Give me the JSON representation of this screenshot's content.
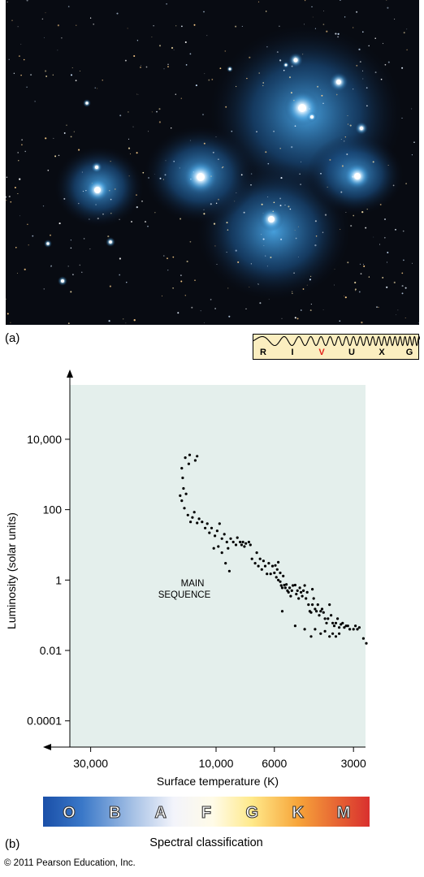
{
  "panel_a": {
    "label": "(a)",
    "band_labels": [
      "R",
      "I",
      "V",
      "U",
      "X",
      "G"
    ],
    "band_highlight": "V",
    "band_highlight_color": "#e32119"
  },
  "panel_b": {
    "label": "(b)"
  },
  "chart_data": {
    "type": "scatter",
    "xlabel": "Surface temperature (K)",
    "ylabel": "Luminosity (solar units)",
    "x_scale": "log (reversed)",
    "y_scale": "log",
    "x_ticks": [
      30000,
      10000,
      6000,
      3000
    ],
    "x_tick_labels": [
      "30,000",
      "10,000",
      "6000",
      "3000"
    ],
    "y_ticks": [
      0.0001,
      0.01,
      1,
      100,
      10000
    ],
    "y_tick_labels": [
      "0.0001",
      "0.01",
      "1",
      "100",
      "10,000"
    ],
    "xlim": [
      36000,
      2700
    ],
    "ylim": [
      1.8e-05,
      350000
    ],
    "annotation": [
      "MAIN",
      "SEQUENCE"
    ],
    "background_color": "#e4efec",
    "points": [
      [
        13500,
        1500
      ],
      [
        13400,
        800
      ],
      [
        13300,
        400
      ],
      [
        13100,
        3000
      ],
      [
        12700,
        2000
      ],
      [
        12600,
        3600
      ],
      [
        12000,
        2500
      ],
      [
        11800,
        3300
      ],
      [
        13700,
        250
      ],
      [
        13500,
        180
      ],
      [
        13200,
        110
      ],
      [
        13000,
        280
      ],
      [
        12800,
        70
      ],
      [
        12500,
        45
      ],
      [
        12300,
        60
      ],
      [
        12100,
        85
      ],
      [
        11800,
        42
      ],
      [
        11600,
        55
      ],
      [
        11300,
        45
      ],
      [
        11000,
        30
      ],
      [
        10800,
        40
      ],
      [
        10600,
        22
      ],
      [
        10400,
        30
      ],
      [
        10100,
        18
      ],
      [
        9900,
        25
      ],
      [
        9700,
        40
      ],
      [
        9500,
        15
      ],
      [
        9300,
        20
      ],
      [
        9100,
        12
      ],
      [
        9000,
        8
      ],
      [
        8800,
        15
      ],
      [
        8600,
        12
      ],
      [
        8400,
        10
      ],
      [
        8300,
        16
      ],
      [
        8100,
        12
      ],
      [
        8000,
        10
      ],
      [
        7900,
        12
      ],
      [
        7800,
        9
      ],
      [
        7700,
        11
      ],
      [
        7500,
        12
      ],
      [
        7400,
        10
      ],
      [
        10200,
        8
      ],
      [
        9800,
        9
      ],
      [
        9500,
        6
      ],
      [
        9200,
        3
      ],
      [
        8900,
        1.8
      ],
      [
        7300,
        4
      ],
      [
        7100,
        3
      ],
      [
        7000,
        6
      ],
      [
        6900,
        2.5
      ],
      [
        6800,
        4
      ],
      [
        6700,
        2.0
      ],
      [
        6600,
        3.5
      ],
      [
        6500,
        2.5
      ],
      [
        6400,
        1.5
      ],
      [
        6300,
        3.0
      ],
      [
        6200,
        1.5
      ],
      [
        6100,
        2.5
      ],
      [
        6000,
        1.6
      ],
      [
        5950,
        2.6
      ],
      [
        5900,
        1.2
      ],
      [
        5850,
        2.0
      ],
      [
        5800,
        3.2
      ],
      [
        5800,
        1.0
      ],
      [
        5700,
        0.9
      ],
      [
        5700,
        1.6
      ],
      [
        5650,
        0.7
      ],
      [
        5600,
        0.6
      ],
      [
        5550,
        1.3
      ],
      [
        5500,
        0.72
      ],
      [
        5450,
        0.6
      ],
      [
        5400,
        0.75
      ],
      [
        5350,
        0.5
      ],
      [
        5300,
        0.45
      ],
      [
        5250,
        0.6
      ],
      [
        5200,
        0.35
      ],
      [
        5150,
        0.5
      ],
      [
        5100,
        0.7
      ],
      [
        5000,
        0.72
      ],
      [
        4950,
        0.4
      ],
      [
        4900,
        0.5
      ],
      [
        4850,
        0.3
      ],
      [
        4800,
        0.6
      ],
      [
        4750,
        0.45
      ],
      [
        4700,
        0.35
      ],
      [
        4650,
        0.5
      ],
      [
        4600,
        0.7
      ],
      [
        4550,
        0.3
      ],
      [
        4500,
        0.45
      ],
      [
        4450,
        0.2
      ],
      [
        4400,
        0.13
      ],
      [
        4350,
        0.12
      ],
      [
        4300,
        0.2
      ],
      [
        4300,
        0.55
      ],
      [
        4250,
        0.3
      ],
      [
        4200,
        0.15
      ],
      [
        4150,
        0.13
      ],
      [
        4100,
        0.2
      ],
      [
        4050,
        0.1
      ],
      [
        4000,
        0.13
      ],
      [
        3950,
        0.15
      ],
      [
        3900,
        0.12
      ],
      [
        3850,
        0.08
      ],
      [
        3800,
        0.06
      ],
      [
        3750,
        0.08
      ],
      [
        3700,
        0.2
      ],
      [
        3650,
        0.1
      ],
      [
        3600,
        0.06
      ],
      [
        3550,
        0.05
      ],
      [
        3500,
        0.06
      ],
      [
        3450,
        0.08
      ],
      [
        3400,
        0.045
      ],
      [
        3350,
        0.055
      ],
      [
        3300,
        0.06
      ],
      [
        3250,
        0.045
      ],
      [
        3200,
        0.05
      ],
      [
        3150,
        0.05
      ],
      [
        3100,
        0.04
      ],
      [
        3000,
        0.04
      ],
      [
        2950,
        0.05
      ],
      [
        2900,
        0.04
      ],
      [
        2850,
        0.045
      ],
      [
        2750,
        0.022
      ],
      [
        2680,
        0.016
      ],
      [
        5600,
        0.13
      ],
      [
        5000,
        0.05
      ],
      [
        4600,
        0.04
      ],
      [
        4350,
        0.025
      ],
      [
        4200,
        0.04
      ],
      [
        4000,
        0.03
      ],
      [
        3850,
        0.035
      ],
      [
        3700,
        0.025
      ],
      [
        3600,
        0.03
      ],
      [
        3500,
        0.025
      ],
      [
        3400,
        0.03
      ]
    ]
  },
  "spectral": {
    "classes": [
      "O",
      "B",
      "A",
      "F",
      "G",
      "K",
      "M"
    ],
    "title": "Spectral classification"
  },
  "copyright": "© 2011 Pearson Education, Inc."
}
